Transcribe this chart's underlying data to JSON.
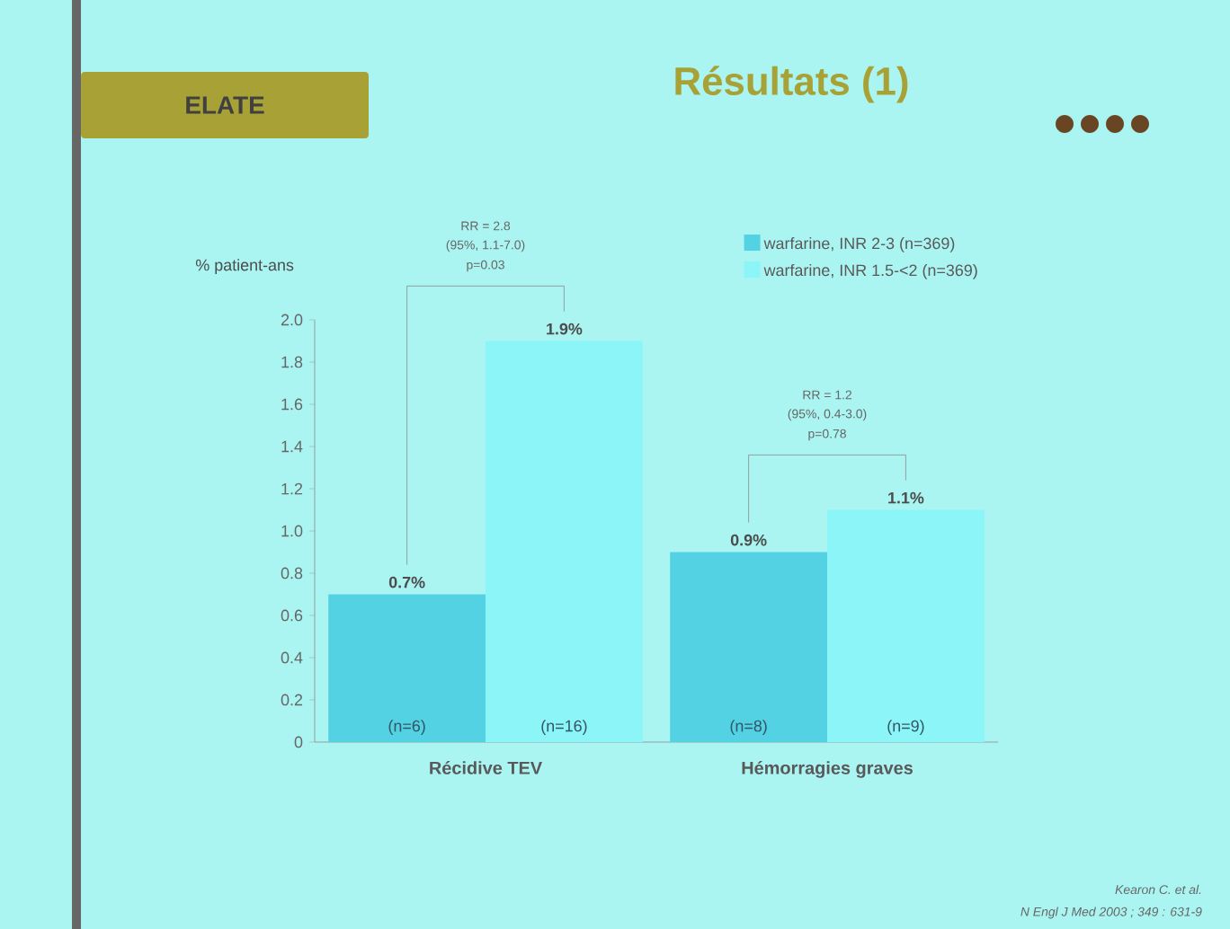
{
  "chart_data": {
    "type": "bar",
    "title": "Résultats (1)",
    "subtitle": "ELATE",
    "ylabel": "% patient-ans",
    "categories": [
      "Récidive TEV",
      "Hémorragies graves"
    ],
    "series": [
      {
        "name": "warfarine, INR 2-3 (n=369)",
        "color": "#52d2e2",
        "values": [
          0.7,
          0.9
        ],
        "value_labels": [
          "0.7%",
          "0.9%"
        ]
      },
      {
        "name": "warfarine, INR 1.5-<2 (n=369)",
        "color": "#8cf5f7",
        "values": [
          1.9,
          1.1
        ],
        "value_labels": [
          "1.9%",
          "1.1%"
        ]
      }
    ],
    "ylim": [
      0,
      2.0
    ],
    "yticks": [
      {
        "value": 0,
        "label": "0"
      },
      0.2,
      0.4,
      0.6,
      0.8,
      {
        "value": 1,
        "label": "1.0"
      },
      1.2,
      1.4,
      1.6,
      1.8,
      {
        "value": 2,
        "label": "2.0"
      }
    ],
    "legend": "top right",
    "grid": false,
    "annotations": [
      "(n=6)",
      "(n=16)",
      "(n=8)",
      "(n=9)",
      "RR = 2.8",
      "(95%, 1.1-7.0)",
      "p=0.03",
      "RR = 1.2",
      "(95%, 0.4-3.0)",
      "p=0.78",
      "Kearon C. et al.",
      "N Engl J Med 2003 ; 349 : 631-9"
    ]
  }
}
